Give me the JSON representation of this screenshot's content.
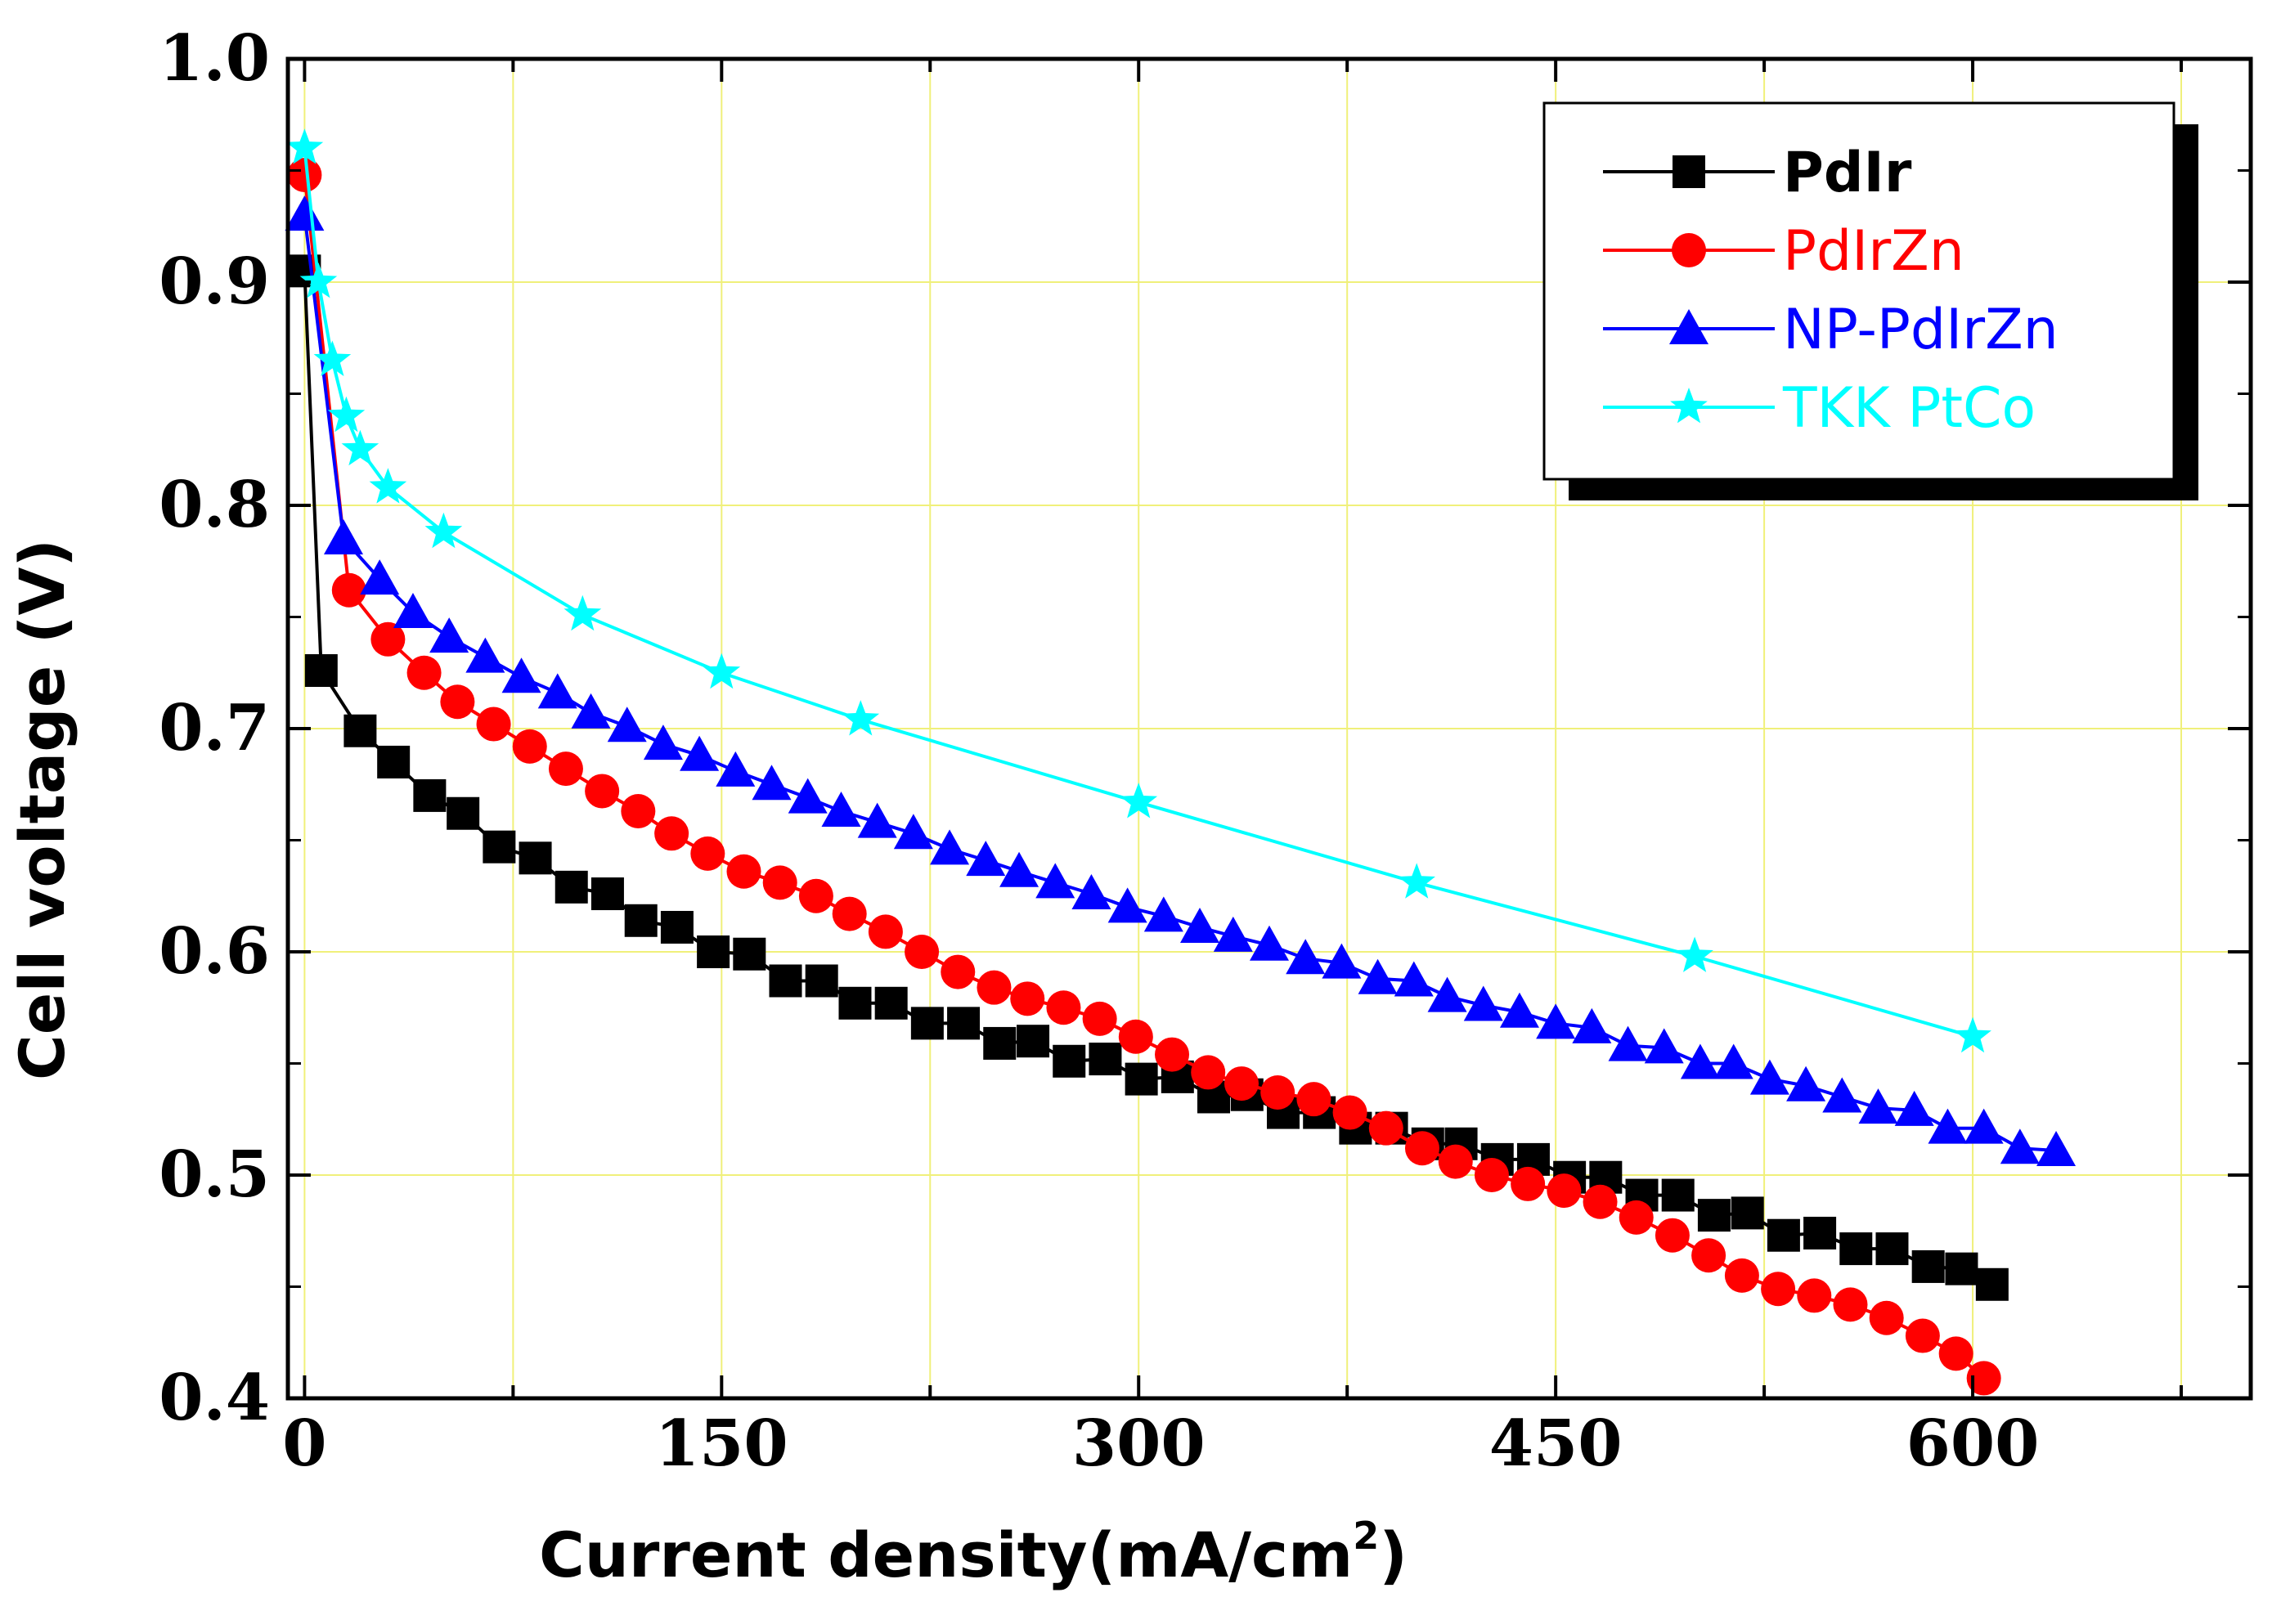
{
  "chart_data": {
    "type": "line",
    "title": "",
    "xlabel": "Current density(mA/cm",
    "xlabel_sup": "2",
    "xlabel_close": ")",
    "ylabel": "Cell voltage (V)",
    "xlim": [
      -6,
      700
    ],
    "ylim": [
      0.4,
      1.0
    ],
    "xticks": [
      0,
      150,
      300,
      450,
      600
    ],
    "xtick_labels": [
      "0",
      "150",
      "300",
      "450",
      "600"
    ],
    "yticks": [
      0.4,
      0.5,
      0.6,
      0.7,
      0.8,
      0.9,
      1.0
    ],
    "ytick_labels": [
      "0.4",
      "0.5",
      "0.6",
      "0.7",
      "0.8",
      "0.9",
      "1.0"
    ],
    "grid": true,
    "legend_position": "top-right",
    "series": [
      {
        "name": "PdIr",
        "color": "#000000",
        "marker": "square",
        "x": [
          0,
          6,
          20,
          32,
          45,
          57,
          70,
          83,
          96,
          109,
          121,
          134,
          147,
          160,
          173,
          186,
          198,
          211,
          224,
          237,
          250,
          262,
          275,
          288,
          301,
          314,
          327,
          339,
          352,
          365,
          378,
          391,
          404,
          416,
          429,
          442,
          455,
          468,
          481,
          494,
          507,
          519,
          532,
          545,
          558,
          571,
          584,
          596,
          607
        ],
        "y": [
          0.905,
          0.726,
          0.699,
          0.685,
          0.67,
          0.662,
          0.647,
          0.642,
          0.629,
          0.626,
          0.614,
          0.611,
          0.6,
          0.599,
          0.587,
          0.587,
          0.577,
          0.577,
          0.568,
          0.568,
          0.559,
          0.56,
          0.551,
          0.552,
          0.543,
          0.544,
          0.535,
          0.536,
          0.528,
          0.528,
          0.521,
          0.521,
          0.514,
          0.514,
          0.507,
          0.507,
          0.499,
          0.499,
          0.491,
          0.491,
          0.482,
          0.483,
          0.473,
          0.474,
          0.467,
          0.467,
          0.459,
          0.458,
          0.451
        ]
      },
      {
        "name": "PdIrZn",
        "color": "#ff0000",
        "marker": "circle",
        "x": [
          0,
          16,
          30,
          43,
          55,
          68,
          81,
          94,
          107,
          120,
          132,
          145,
          158,
          171,
          184,
          196,
          209,
          222,
          235,
          248,
          260,
          273,
          286,
          299,
          312,
          325,
          337,
          350,
          363,
          376,
          389,
          402,
          414,
          427,
          440,
          453,
          466,
          479,
          492,
          505,
          517,
          530,
          543,
          556,
          569,
          582,
          594,
          604
        ],
        "y": [
          0.948,
          0.762,
          0.74,
          0.725,
          0.712,
          0.702,
          0.692,
          0.682,
          0.672,
          0.663,
          0.653,
          0.644,
          0.636,
          0.631,
          0.625,
          0.617,
          0.609,
          0.6,
          0.591,
          0.584,
          0.579,
          0.575,
          0.57,
          0.562,
          0.554,
          0.546,
          0.541,
          0.537,
          0.534,
          0.528,
          0.521,
          0.512,
          0.506,
          0.5,
          0.496,
          0.493,
          0.488,
          0.481,
          0.473,
          0.464,
          0.455,
          0.449,
          0.446,
          0.442,
          0.436,
          0.428,
          0.42,
          0.409
        ]
      },
      {
        "name": "NP-PdIrZn",
        "color": "#0000ff",
        "marker": "triangle",
        "x": [
          0,
          14,
          27,
          39,
          52,
          65,
          78,
          91,
          103,
          116,
          129,
          142,
          155,
          168,
          181,
          193,
          206,
          219,
          232,
          245,
          257,
          270,
          283,
          296,
          309,
          322,
          334,
          347,
          360,
          373,
          386,
          399,
          411,
          424,
          437,
          450,
          463,
          476,
          489,
          502,
          514,
          527,
          540,
          553,
          566,
          579,
          591,
          604,
          617,
          630
        ],
        "y": [
          0.93,
          0.785,
          0.767,
          0.752,
          0.741,
          0.732,
          0.723,
          0.716,
          0.707,
          0.701,
          0.693,
          0.688,
          0.681,
          0.675,
          0.669,
          0.663,
          0.658,
          0.653,
          0.646,
          0.641,
          0.636,
          0.631,
          0.626,
          0.62,
          0.616,
          0.611,
          0.607,
          0.603,
          0.597,
          0.595,
          0.588,
          0.587,
          0.58,
          0.576,
          0.573,
          0.568,
          0.566,
          0.558,
          0.557,
          0.55,
          0.55,
          0.543,
          0.54,
          0.535,
          0.53,
          0.529,
          0.521,
          0.521,
          0.512,
          0.511
        ]
      },
      {
        "name": "TKK PtCo",
        "color": "#00ffff",
        "marker": "star",
        "x": [
          0,
          5,
          10,
          15,
          20,
          30,
          50,
          100,
          150,
          200,
          300,
          400,
          500,
          600
        ],
        "y": [
          0.96,
          0.9,
          0.865,
          0.84,
          0.825,
          0.808,
          0.788,
          0.751,
          0.725,
          0.704,
          0.667,
          0.631,
          0.598,
          0.562
        ]
      }
    ]
  }
}
